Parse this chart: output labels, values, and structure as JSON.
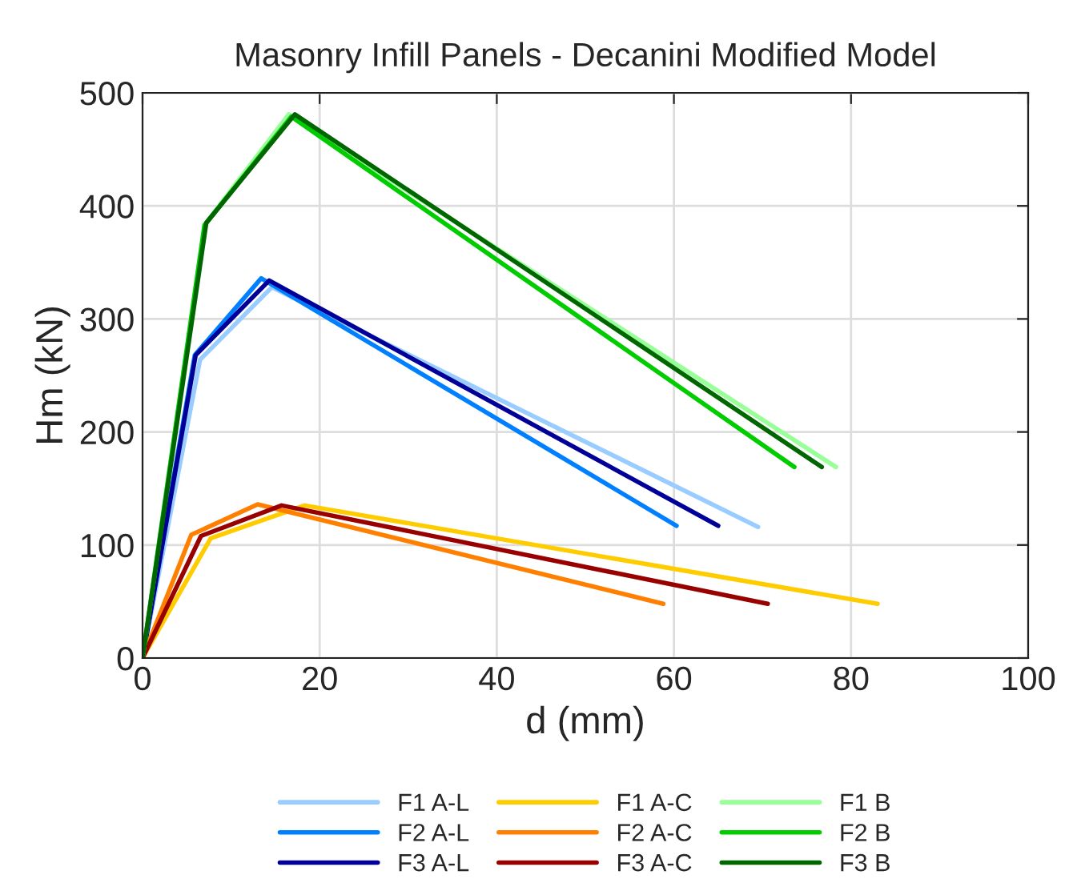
{
  "chart_data": {
    "type": "line",
    "title": "Masonry Infill Panels - Decanini Modified Model",
    "xlabel": "d (mm)",
    "ylabel": "Hm (kN)",
    "xlim": [
      0,
      100
    ],
    "xticks": [
      0,
      20,
      40,
      60,
      80,
      100
    ],
    "ylim": [
      0,
      500
    ],
    "yticks": [
      0,
      100,
      200,
      300,
      400,
      500
    ],
    "grid": true,
    "legend": "bottom",
    "marker": "none",
    "line_style": "solid",
    "series": [
      {
        "name": "F1 A-L",
        "color": "#99ccff",
        "x": [
          0,
          6.5,
          14.6,
          69.5
        ],
        "values": [
          0,
          264,
          328,
          116
        ]
      },
      {
        "name": "F2 A-L",
        "color": "#0080ff",
        "x": [
          0,
          5.9,
          13.4,
          60.3
        ],
        "values": [
          0,
          268,
          336,
          117
        ]
      },
      {
        "name": "F3 A-L",
        "color": "#000099",
        "x": [
          0,
          6.0,
          14.3,
          65
        ],
        "values": [
          0,
          268,
          334,
          117
        ]
      },
      {
        "name": "F1 A-C",
        "color": "#ffcc00",
        "x": [
          0,
          7.7,
          18.3,
          83
        ],
        "values": [
          0,
          106,
          135,
          48
        ]
      },
      {
        "name": "F2 A-C",
        "color": "#ff8000",
        "x": [
          0,
          5.5,
          13,
          58.8
        ],
        "values": [
          0,
          109,
          136,
          48
        ]
      },
      {
        "name": "F3 A-C",
        "color": "#990000",
        "x": [
          0,
          6.6,
          15.7,
          70.6
        ],
        "values": [
          0,
          108,
          135,
          48
        ]
      },
      {
        "name": "F1 B",
        "color": "#99ff99",
        "x": [
          0,
          7.0,
          16.5,
          78.3
        ],
        "values": [
          0,
          383,
          481,
          169
        ]
      },
      {
        "name": "F2 B",
        "color": "#00cc00",
        "x": [
          0,
          7.0,
          16.8,
          73.6
        ],
        "values": [
          0,
          383,
          479,
          169
        ]
      },
      {
        "name": "F3 B",
        "color": "#006600",
        "x": [
          0,
          7.2,
          17.2,
          76.7
        ],
        "values": [
          0,
          385,
          481,
          169
        ]
      }
    ]
  }
}
